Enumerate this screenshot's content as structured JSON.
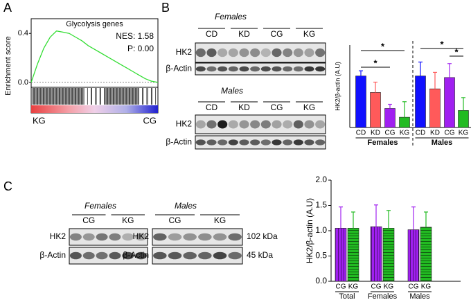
{
  "panel_labels": [
    "A",
    "B",
    "C"
  ],
  "chart_data": [
    {
      "type": "line",
      "title": "Glycolysis genes",
      "ylabel": "Enrichment score",
      "annotations": [
        "NES: 1.58",
        "P: 0.00"
      ],
      "x_end_labels": [
        "KG",
        "CG"
      ],
      "x": [
        0,
        5,
        10,
        15,
        20,
        25,
        30,
        35,
        40,
        45,
        50,
        55,
        60,
        65,
        70,
        75,
        80,
        85,
        90,
        95,
        100
      ],
      "values": [
        0,
        0.15,
        0.28,
        0.37,
        0.42,
        0.41,
        0.4,
        0.37,
        0.34,
        0.3,
        0.27,
        0.24,
        0.21,
        0.18,
        0.15,
        0.12,
        0.09,
        0.06,
        0.03,
        0.01,
        0
      ],
      "color": "#33dd33",
      "xlim": [
        0,
        100
      ],
      "ylim": [
        -0.04,
        0.52
      ],
      "yticks": [
        {
          "value": 0,
          "label": "0.0"
        },
        0.4
      ]
    },
    {
      "type": "grouped_bar",
      "ylabel": "HK2/β-actin (A.U)",
      "categories": [
        "CD",
        "KD",
        "CG",
        "KG"
      ],
      "colors": [
        "#1010ff",
        "#ff5a5a",
        "#a020f0",
        "#22bb22"
      ],
      "groups": [
        {
          "name": "Females",
          "values": [
            1.0,
            0.68,
            0.37,
            0.2
          ],
          "errors": [
            0.1,
            0.2,
            0.08,
            0.3
          ]
        },
        {
          "name": "Males",
          "values": [
            1.0,
            0.75,
            0.97,
            0.33
          ],
          "errors": [
            0.27,
            0.32,
            0.27,
            0.25
          ]
        }
      ],
      "ylim": [
        0,
        1.6
      ],
      "significance": [
        "*",
        "*",
        "*",
        "*"
      ]
    },
    {
      "type": "grouped_bar",
      "ylabel": "HK2/β-actin (A.U)",
      "categories": [
        "CG",
        "KG"
      ],
      "colors": [
        "#a020f0",
        "#22bb22"
      ],
      "hatch": true,
      "groups": [
        {
          "name": "Total",
          "values": [
            1.05,
            1.05
          ],
          "errors": [
            0.42,
            0.32
          ]
        },
        {
          "name": "Females",
          "values": [
            1.08,
            1.05
          ],
          "errors": [
            0.43,
            0.35
          ]
        },
        {
          "name": "Males",
          "values": [
            1.02,
            1.07
          ],
          "errors": [
            0.45,
            0.3
          ]
        }
      ],
      "ylim": [
        0,
        2
      ],
      "yticks": [
        {
          "value": 0,
          "label": "0.0"
        },
        0.5,
        {
          "value": 1,
          "label": "1.0"
        },
        1.5,
        {
          "value": 2,
          "label": "2.0"
        }
      ]
    }
  ],
  "blots": [
    {
      "title": "Females",
      "lanes": [
        "CD",
        "KD",
        "CG",
        "KG"
      ],
      "rows": [
        "HK2",
        "β-Actin"
      ]
    },
    {
      "title": "Males",
      "lanes": [
        "CD",
        "KD",
        "CG",
        "KG"
      ],
      "rows": [
        "HK2",
        "β-Actin"
      ]
    },
    {
      "title": "Females",
      "lanes": [
        "CG",
        "KG"
      ],
      "rows": [
        "HK2",
        "β-Actin"
      ]
    },
    {
      "title": "Males",
      "lanes": [
        "CG",
        "KG"
      ],
      "rows": [
        "HK2",
        "β-Actin"
      ],
      "sizes": [
        "102 kDa",
        "45 kDa"
      ]
    }
  ]
}
